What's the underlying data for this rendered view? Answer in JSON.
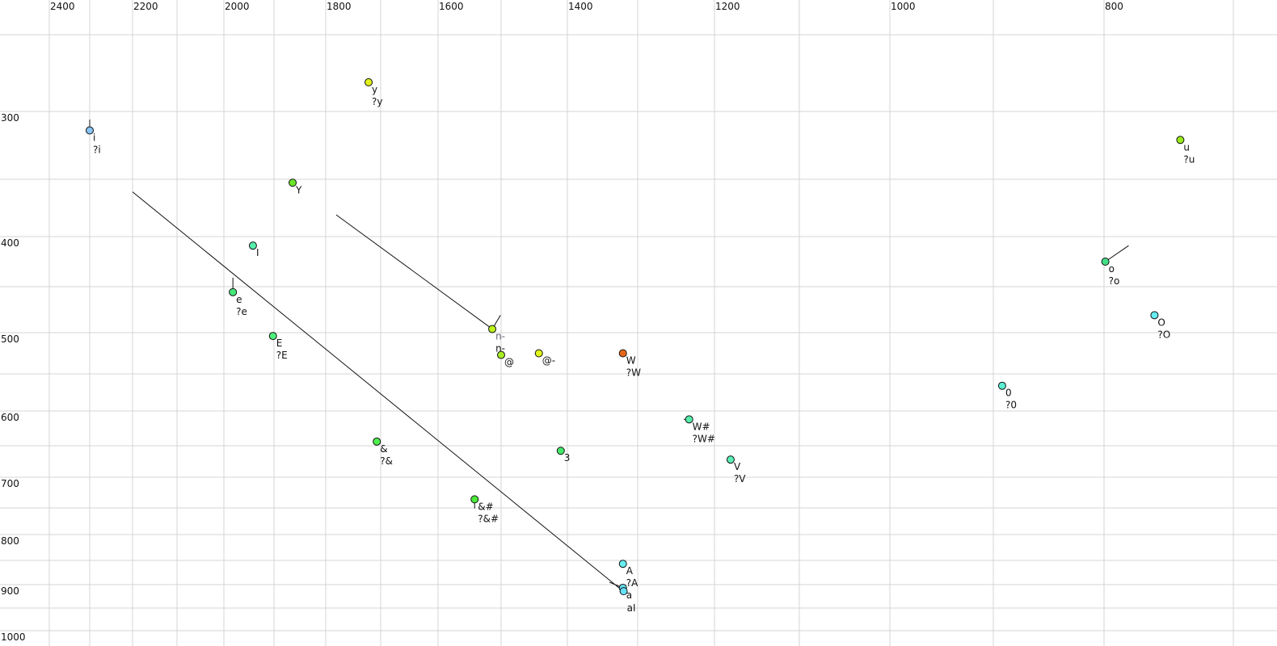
{
  "chart_data": {
    "type": "scatter",
    "title": "",
    "xlabel": "",
    "ylabel": "",
    "x_axis": {
      "reversed": true,
      "position": "top",
      "ticks": [
        2400,
        2200,
        2000,
        1800,
        1600,
        1400,
        1200,
        1000,
        800
      ],
      "range": [
        2400,
        650
      ]
    },
    "y_axis": {
      "reversed": true,
      "position": "left",
      "ticks": [
        300,
        400,
        500,
        600,
        700,
        800,
        900,
        1000
      ],
      "range": [
        250,
        1020
      ]
    },
    "grid": true,
    "points": [
      {
        "label": "i",
        "label2": "?i",
        "x": 2300,
        "y": 314,
        "color": "#88c4f4",
        "tail": [
          2300,
          306
        ]
      },
      {
        "label": "y",
        "label2": "?y",
        "x": 1722,
        "y": 281,
        "color": "#e2f21a"
      },
      {
        "label": "Y",
        "label2": "",
        "x": 1864,
        "y": 353,
        "color": "#6ae62a"
      },
      {
        "label": "I",
        "label2": "",
        "x": 1942,
        "y": 409,
        "color": "#55eeaa"
      },
      {
        "label": "e",
        "label2": "?e",
        "x": 1982,
        "y": 456,
        "color": "#44e87a",
        "tail": [
          1982,
          441
        ]
      },
      {
        "label": "E",
        "label2": "?E",
        "x": 1902,
        "y": 504,
        "color": "#4ef07a"
      },
      {
        "label": "n-",
        "label2": "n-",
        "label_grey": true,
        "x": 1514,
        "y": 496,
        "color": "#bdf21a",
        "tail": [
          1501,
          481
        ]
      },
      {
        "label": "@",
        "label2": "",
        "x": 1500,
        "y": 527,
        "color": "#a8ec22"
      },
      {
        "label": "@-",
        "label2": "",
        "x": 1443,
        "y": 525,
        "color": "#e0f51a"
      },
      {
        "label": "W",
        "label2": "?W",
        "x": 1321,
        "y": 525,
        "color": "#e8661a"
      },
      {
        "label": "&",
        "label2": "?&",
        "x": 1707,
        "y": 644,
        "color": "#4ef04e"
      },
      {
        "label": "3",
        "label2": "",
        "x": 1410,
        "y": 658,
        "color": "#44e86a"
      },
      {
        "label": "W#",
        "label2": "?W#",
        "x": 1233,
        "y": 612,
        "color": "#55eeaa",
        "tail": [
          1240,
          612
        ]
      },
      {
        "label": "V",
        "label2": "?V",
        "x": 1181,
        "y": 672,
        "color": "#5cf0b8"
      },
      {
        "label": "&#",
        "label2": "?&#",
        "x": 1542,
        "y": 736,
        "color": "#4aea3a",
        "tail": [
          1542,
          751
        ]
      },
      {
        "label": "A",
        "label2": "?A",
        "x": 1321,
        "y": 857,
        "color": "#66eef0"
      },
      {
        "label": "a",
        "label2": "",
        "x": 1321,
        "y": 907,
        "color": "#66e0f6",
        "tail": [
          1340,
          895
        ]
      },
      {
        "label": "aI",
        "label2": "",
        "x": 1320,
        "y": 914,
        "color": "#66e0f6"
      },
      {
        "label": "0",
        "label2": "?0",
        "x": 892,
        "y": 566,
        "color": "#5ceed0"
      },
      {
        "label": "o",
        "label2": "?o",
        "x": 799,
        "y": 425,
        "color": "#44dd88",
        "tail": [
          781,
          409
        ]
      },
      {
        "label": "O",
        "label2": "?O",
        "x": 761,
        "y": 481,
        "color": "#66eef0"
      },
      {
        "label": "u",
        "label2": "?u",
        "x": 741,
        "y": 321,
        "color": "#9aea1e"
      }
    ],
    "lines": [
      {
        "from": [
          2200,
          361
        ],
        "to": [
          1324,
          910
        ]
      },
      {
        "from": [
          1781,
          381
        ],
        "to": [
          1514,
          496
        ]
      }
    ]
  }
}
